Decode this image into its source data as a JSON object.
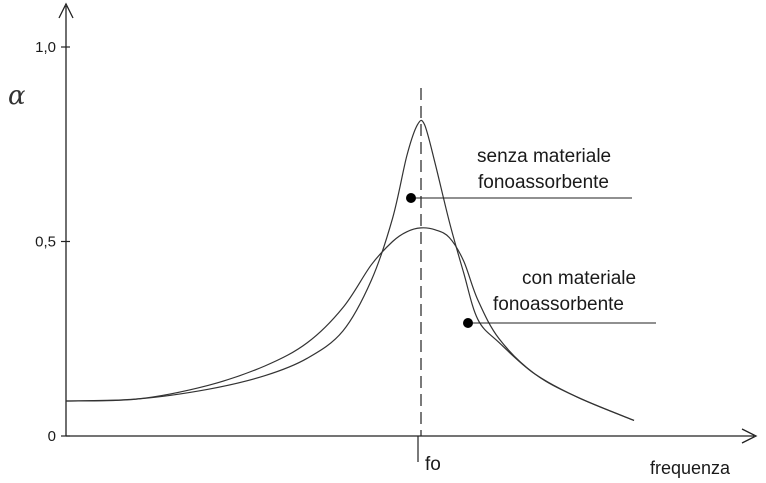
{
  "chart_data": {
    "type": "line",
    "ylabel": "α",
    "xlabel": "frequenza",
    "ylim": [
      0,
      1.0
    ],
    "y_ticks": [
      {
        "value": 0,
        "label": "0"
      },
      {
        "value": 0.5,
        "label": "0,5"
      },
      {
        "value": 1.0,
        "label": "1,0"
      }
    ],
    "x_marker": {
      "label": "fo",
      "value": 0.5
    },
    "xlim": [
      0,
      1
    ],
    "grid": false,
    "series": [
      {
        "name": "senza materiale fonoassorbente",
        "label_lines": [
          "senza materiale",
          "fonoassorbente"
        ],
        "x": [
          0.0,
          0.1,
          0.2,
          0.28,
          0.34,
          0.39,
          0.43,
          0.46,
          0.48,
          0.495,
          0.505,
          0.52,
          0.54,
          0.56,
          0.58,
          0.61,
          0.66,
          0.72,
          0.8
        ],
        "values": [
          0.09,
          0.095,
          0.12,
          0.155,
          0.2,
          0.27,
          0.4,
          0.56,
          0.72,
          0.8,
          0.8,
          0.7,
          0.55,
          0.42,
          0.3,
          0.24,
          0.16,
          0.1,
          0.04
        ]
      },
      {
        "name": "con materiale fonoassorbente",
        "label_lines": [
          "con materiale",
          "fonoassorbente"
        ],
        "x": [
          0.0,
          0.1,
          0.2,
          0.28,
          0.34,
          0.39,
          0.43,
          0.46,
          0.48,
          0.5,
          0.52,
          0.54,
          0.56,
          0.58,
          0.61,
          0.66,
          0.72,
          0.8
        ],
        "values": [
          0.09,
          0.095,
          0.13,
          0.18,
          0.24,
          0.33,
          0.44,
          0.5,
          0.525,
          0.535,
          0.53,
          0.51,
          0.45,
          0.35,
          0.25,
          0.16,
          0.1,
          0.04
        ]
      }
    ]
  }
}
